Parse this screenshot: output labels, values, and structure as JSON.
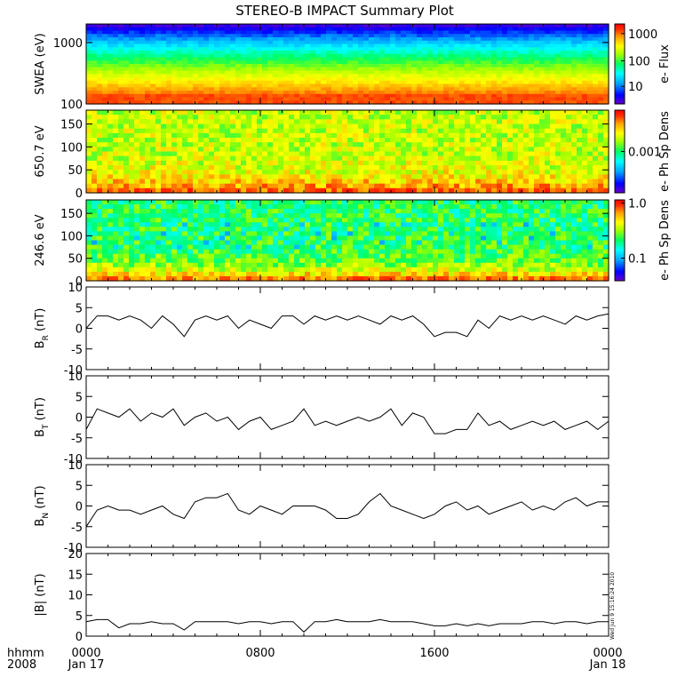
{
  "title": "STEREO-B IMPACT Summary Plot",
  "footer": {
    "row1_label": "hhmm",
    "row2_label": "2008",
    "times": [
      "0000",
      "0800",
      "1600",
      "0000"
    ],
    "dates": [
      "Jan 17",
      "Jan 18"
    ],
    "stamp": "Wed Jun  9 15:16:24 2010"
  },
  "colors": {
    "line": "#000000",
    "colormap": [
      "#6a00c8",
      "#0000ff",
      "#00a0ff",
      "#00ffff",
      "#00ff60",
      "#a0ff00",
      "#ffff00",
      "#ffa000",
      "#ff3000",
      "#ff0000"
    ]
  },
  "chart_data": [
    {
      "type": "heatmap",
      "ylabel": "SWEA (eV)",
      "yscale": "log",
      "ylim": [
        100,
        2000
      ],
      "yticks": [
        "100",
        "1000"
      ],
      "xlim_hours": [
        0,
        24
      ],
      "colorbar": {
        "label": "e- Flux",
        "scale": "log",
        "ticks": [
          "10",
          "100",
          "1000"
        ]
      },
      "description_rows": [
        {
          "energy_eV": 2000,
          "level": 0.05
        },
        {
          "energy_eV": 1500,
          "level": 0.12
        },
        {
          "energy_eV": 1000,
          "level": 0.25
        },
        {
          "energy_eV": 700,
          "level": 0.38
        },
        {
          "energy_eV": 500,
          "level": 0.5
        },
        {
          "energy_eV": 350,
          "level": 0.6
        },
        {
          "energy_eV": 250,
          "level": 0.7
        },
        {
          "energy_eV": 180,
          "level": 0.82
        },
        {
          "energy_eV": 130,
          "level": 0.88
        },
        {
          "energy_eV": 100,
          "level": 0.84
        }
      ]
    },
    {
      "type": "heatmap",
      "ylabel": "650.7 eV",
      "ylim": [
        0,
        180
      ],
      "yticks": [
        "0",
        "50",
        "100",
        "150"
      ],
      "xlim_hours": [
        0,
        24
      ],
      "colorbar": {
        "label": "e- Ph Sp Dens",
        "scale": "log",
        "ticks": [
          "0.001"
        ]
      }
    },
    {
      "type": "heatmap",
      "ylabel": "246.6 eV",
      "ylim": [
        0,
        180
      ],
      "yticks": [
        "0",
        "50",
        "100",
        "150"
      ],
      "xlim_hours": [
        0,
        24
      ],
      "colorbar": {
        "label": "e- Ph Sp Dens",
        "scale": "log",
        "ticks": [
          "0.1",
          "1.0"
        ]
      }
    },
    {
      "type": "line",
      "ylabel": "BR (nT)",
      "ylabel_main": "B",
      "ylabel_sub": "R",
      "ylabel_unit": " (nT)",
      "ylim": [
        -10,
        10
      ],
      "yticks": [
        "-10",
        "-5",
        "0",
        "5",
        "10"
      ],
      "xlim_hours": [
        0,
        24
      ],
      "x": [
        0,
        0.5,
        1,
        1.5,
        2,
        2.5,
        3,
        3.5,
        4,
        4.5,
        5,
        5.5,
        6,
        6.5,
        7,
        7.5,
        8,
        8.5,
        9,
        9.5,
        10,
        10.5,
        11,
        11.5,
        12,
        12.5,
        13,
        13.5,
        14,
        14.5,
        15,
        15.5,
        16,
        16.5,
        17,
        17.5,
        18,
        18.5,
        19,
        19.5,
        20,
        20.5,
        21,
        21.5,
        22,
        22.5,
        23,
        23.5,
        24
      ],
      "values": [
        0,
        3,
        3,
        2,
        3,
        2,
        0,
        3,
        1,
        -2,
        2,
        3,
        2,
        3,
        0,
        2,
        1,
        0,
        3,
        3,
        1,
        3,
        2,
        3,
        2,
        3,
        2,
        1,
        3,
        2,
        3,
        1,
        -2,
        -1,
        -1,
        -2,
        2,
        0,
        3,
        2,
        3,
        2,
        3,
        2,
        1,
        3,
        2,
        3,
        3.5
      ]
    },
    {
      "type": "line",
      "ylabel": "BT (nT)",
      "ylabel_main": "B",
      "ylabel_sub": "T",
      "ylabel_unit": " (nT)",
      "ylim": [
        -10,
        10
      ],
      "yticks": [
        "-10",
        "-5",
        "0",
        "5",
        "10"
      ],
      "xlim_hours": [
        0,
        24
      ],
      "x": [
        0,
        0.5,
        1,
        1.5,
        2,
        2.5,
        3,
        3.5,
        4,
        4.5,
        5,
        5.5,
        6,
        6.5,
        7,
        7.5,
        8,
        8.5,
        9,
        9.5,
        10,
        10.5,
        11,
        11.5,
        12,
        12.5,
        13,
        13.5,
        14,
        14.5,
        15,
        15.5,
        16,
        16.5,
        17,
        17.5,
        18,
        18.5,
        19,
        19.5,
        20,
        20.5,
        21,
        21.5,
        22,
        22.5,
        23,
        23.5,
        24
      ],
      "values": [
        -3,
        2,
        1,
        0,
        2,
        -1,
        1,
        0,
        2,
        -2,
        0,
        1,
        -1,
        0,
        -3,
        -1,
        0,
        -3,
        -2,
        -1,
        2,
        -2,
        -1,
        -2,
        -1,
        0,
        -1,
        0,
        2,
        -2,
        1,
        0,
        -4,
        -4,
        -3,
        -3,
        1,
        -2,
        -1,
        -3,
        -2,
        -1,
        -2,
        -1,
        -3,
        -2,
        -1,
        -3,
        -1
      ]
    },
    {
      "type": "line",
      "ylabel": "BN (nT)",
      "ylabel_main": "B",
      "ylabel_sub": "N",
      "ylabel_unit": " (nT)",
      "ylim": [
        -10,
        10
      ],
      "yticks": [
        "-10",
        "-5",
        "0",
        "5",
        "10"
      ],
      "xlim_hours": [
        0,
        24
      ],
      "x": [
        0,
        0.5,
        1,
        1.5,
        2,
        2.5,
        3,
        3.5,
        4,
        4.5,
        5,
        5.5,
        6,
        6.5,
        7,
        7.5,
        8,
        8.5,
        9,
        9.5,
        10,
        10.5,
        11,
        11.5,
        12,
        12.5,
        13,
        13.5,
        14,
        14.5,
        15,
        15.5,
        16,
        16.5,
        17,
        17.5,
        18,
        18.5,
        19,
        19.5,
        20,
        20.5,
        21,
        21.5,
        22,
        22.5,
        23,
        23.5,
        24
      ],
      "values": [
        -5,
        -1,
        0,
        -1,
        -1,
        -2,
        -1,
        0,
        -2,
        -3,
        1,
        2,
        2,
        3,
        -1,
        -2,
        0,
        -1,
        -2,
        0,
        0,
        0,
        -1,
        -3,
        -3,
        -2,
        1,
        3,
        0,
        -1,
        -2,
        -3,
        -2,
        0,
        1,
        -1,
        0,
        -2,
        -1,
        0,
        1,
        -1,
        0,
        -1,
        1,
        2,
        0,
        1,
        1
      ]
    },
    {
      "type": "line",
      "ylabel": "|B| (nT)",
      "ylabel_main": "|B|",
      "ylabel_sub": "",
      "ylabel_unit": " (nT)",
      "ylim": [
        0,
        20
      ],
      "yticks": [
        "0",
        "5",
        "10",
        "15",
        "20"
      ],
      "xlim_hours": [
        0,
        24
      ],
      "x": [
        0,
        0.5,
        1,
        1.5,
        2,
        2.5,
        3,
        3.5,
        4,
        4.5,
        5,
        5.5,
        6,
        6.5,
        7,
        7.5,
        8,
        8.5,
        9,
        9.5,
        10,
        10.5,
        11,
        11.5,
        12,
        12.5,
        13,
        13.5,
        14,
        14.5,
        15,
        15.5,
        16,
        16.5,
        17,
        17.5,
        18,
        18.5,
        19,
        19.5,
        20,
        20.5,
        21,
        21.5,
        22,
        22.5,
        23,
        23.5,
        24
      ],
      "values": [
        3.5,
        4,
        4,
        2,
        3,
        3,
        3.5,
        3,
        3,
        1.5,
        3.5,
        3.5,
        3.5,
        3.5,
        3,
        3.5,
        3.5,
        3,
        3.5,
        3.5,
        1,
        3.5,
        3.5,
        4,
        3.5,
        3.5,
        3.5,
        4,
        3.5,
        3.5,
        3.5,
        3,
        2.5,
        2.5,
        3,
        2.5,
        3,
        2.5,
        3,
        3,
        3,
        3.5,
        3.5,
        3,
        3.5,
        3.5,
        3,
        3.5,
        3.5
      ]
    }
  ]
}
